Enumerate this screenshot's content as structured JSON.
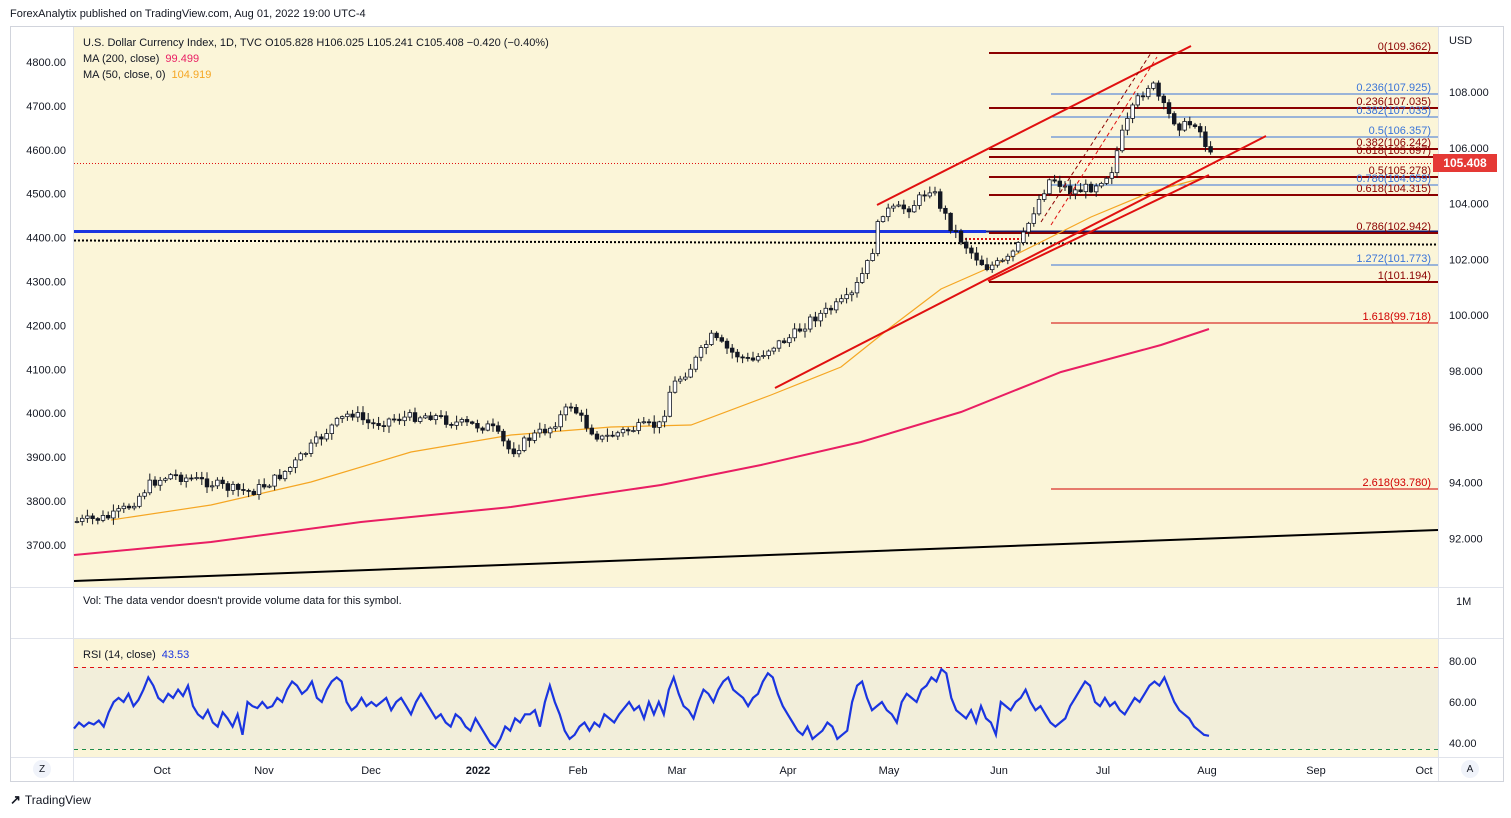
{
  "header": {
    "publisher_line": "ForexAnalytix published on TradingView.com, Aug 01, 2022 19:00 UTC-4"
  },
  "legend": {
    "symbol_line": "U.S. Dollar Currency Index, 1D, TVC  O105.828  H106.025  L105.241  C105.408  −0.420 (−0.40%)",
    "ma200_label": "MA (200, close)",
    "ma200_value": "99.499",
    "ma200_color": "#e91e63",
    "ma50_label": "MA (50, close, 0)",
    "ma50_value": "104.919",
    "ma50_color": "#f5a623"
  },
  "volume_note": "Vol: The data vendor doesn't provide volume data for this symbol.",
  "rsi_legend": {
    "label": "RSI (14, close)",
    "value": "43.53",
    "color": "#1a35e0"
  },
  "currency": "USD",
  "last_price_badge": "105.408",
  "volume_axis_label": "1M",
  "footer": {
    "brand": "TradingView"
  },
  "buttons": {
    "left": "Z",
    "right": "A"
  },
  "chart_data": {
    "type": "candlestick",
    "right_axis": {
      "ticks": [
        "108.000",
        "106.000",
        "104.000",
        "102.000",
        "100.000",
        "98.000",
        "96.000",
        "94.000",
        "92.000"
      ],
      "values": [
        108,
        106,
        104,
        102,
        100,
        98,
        96,
        94,
        92
      ]
    },
    "left_axis": {
      "ticks": [
        "4800.00",
        "4700.00",
        "4600.00",
        "4500.00",
        "4400.00",
        "4300.00",
        "4200.00",
        "4100.00",
        "4000.00",
        "3900.00",
        "3800.00",
        "3700.00"
      ],
      "values": [
        4800,
        4700,
        4600,
        4500,
        4400,
        4300,
        4200,
        4100,
        4000,
        3900,
        3800,
        3700
      ]
    },
    "x_labels": [
      "Oct",
      "Nov",
      "Dec",
      "2022",
      "Feb",
      "Mar",
      "Apr",
      "May",
      "Jun",
      "Jul",
      "Aug",
      "Sep",
      "Oct"
    ],
    "x_bold": [
      false,
      false,
      false,
      true,
      false,
      false,
      false,
      false,
      false,
      false,
      false,
      false,
      false
    ],
    "fib_levels_upper": [
      {
        "label": "0(109.362)",
        "color": "#8b0000"
      },
      {
        "label": "0.236(107.925)",
        "color": "#3a74d8"
      },
      {
        "label": "0.236(107.035)",
        "color": "#8b0000"
      },
      {
        "label": "0.382(107.035)",
        "color": "#3a74d8"
      },
      {
        "label": "0.5(106.357)",
        "color": "#3a74d8"
      },
      {
        "label": "0.382(106.242)",
        "color": "#8b0000"
      },
      {
        "label": "0.618(105.697)",
        "color": "#8b0000"
      },
      {
        "label": "0.5(105.278)",
        "color": "#8b0000"
      },
      {
        "label": "0.786(104.659)",
        "color": "#3a74d8"
      },
      {
        "label": "0.618(104.315)",
        "color": "#8b0000"
      },
      {
        "label": "0.786(102.942)",
        "color": "#8b0000"
      },
      {
        "label": "1.272(101.773)",
        "color": "#3a74d8"
      },
      {
        "label": "1(101.194)",
        "color": "#8b0000"
      },
      {
        "label": "1.618(99.718)",
        "color": "#d00000"
      },
      {
        "label": "2.618(93.780)",
        "color": "#d00000"
      }
    ],
    "rsi_axis": {
      "ticks": [
        "80.00",
        "60.00",
        "40.00"
      ],
      "values": [
        80,
        60,
        40
      ]
    },
    "rsi_values": [
      47,
      50,
      48,
      50,
      49,
      51,
      48,
      55,
      60,
      62,
      60,
      64,
      58,
      61,
      66,
      72,
      68,
      62,
      60,
      64,
      62,
      66,
      63,
      68,
      58,
      54,
      52,
      56,
      50,
      48,
      55,
      52,
      48,
      54,
      44,
      60,
      58,
      57,
      60,
      57,
      58,
      62,
      60,
      66,
      70,
      68,
      64,
      66,
      70,
      62,
      60,
      66,
      70,
      72,
      70,
      60,
      56,
      58,
      62,
      58,
      60,
      58,
      60,
      62,
      56,
      60,
      62,
      58,
      54,
      60,
      64,
      60,
      56,
      52,
      54,
      50,
      48,
      54,
      52,
      48,
      46,
      52,
      48,
      44,
      40,
      38,
      42,
      48,
      46,
      52,
      50,
      54,
      54,
      56,
      48,
      60,
      68,
      60,
      54,
      46,
      42,
      44,
      48,
      50,
      46,
      50,
      48,
      54,
      52,
      50,
      54,
      57,
      60,
      56,
      58,
      52,
      60,
      54,
      60,
      54,
      66,
      72,
      64,
      58,
      56,
      52,
      60,
      66,
      64,
      60,
      66,
      70,
      72,
      66,
      64,
      62,
      58,
      62,
      64,
      70,
      74,
      72,
      64,
      58,
      54,
      50,
      46,
      44,
      48,
      42,
      44,
      46,
      50,
      48,
      42,
      44,
      46,
      60,
      68,
      70,
      62,
      56,
      58,
      60,
      56,
      54,
      50,
      60,
      64,
      62,
      60,
      66,
      68,
      72,
      70,
      76,
      74,
      62,
      56,
      54,
      52,
      56,
      50,
      58,
      52,
      50,
      44
    ],
    "rsi_values_late": [
      60,
      58,
      56,
      60,
      62,
      66,
      60,
      56,
      58,
      54,
      50,
      48,
      50,
      52,
      58,
      62,
      66,
      70,
      68,
      60,
      58,
      62,
      58,
      60,
      56,
      54,
      58,
      62,
      60,
      64,
      68,
      70,
      68,
      72,
      66,
      60,
      56,
      54,
      52,
      48,
      46,
      44,
      43.53
    ]
  }
}
